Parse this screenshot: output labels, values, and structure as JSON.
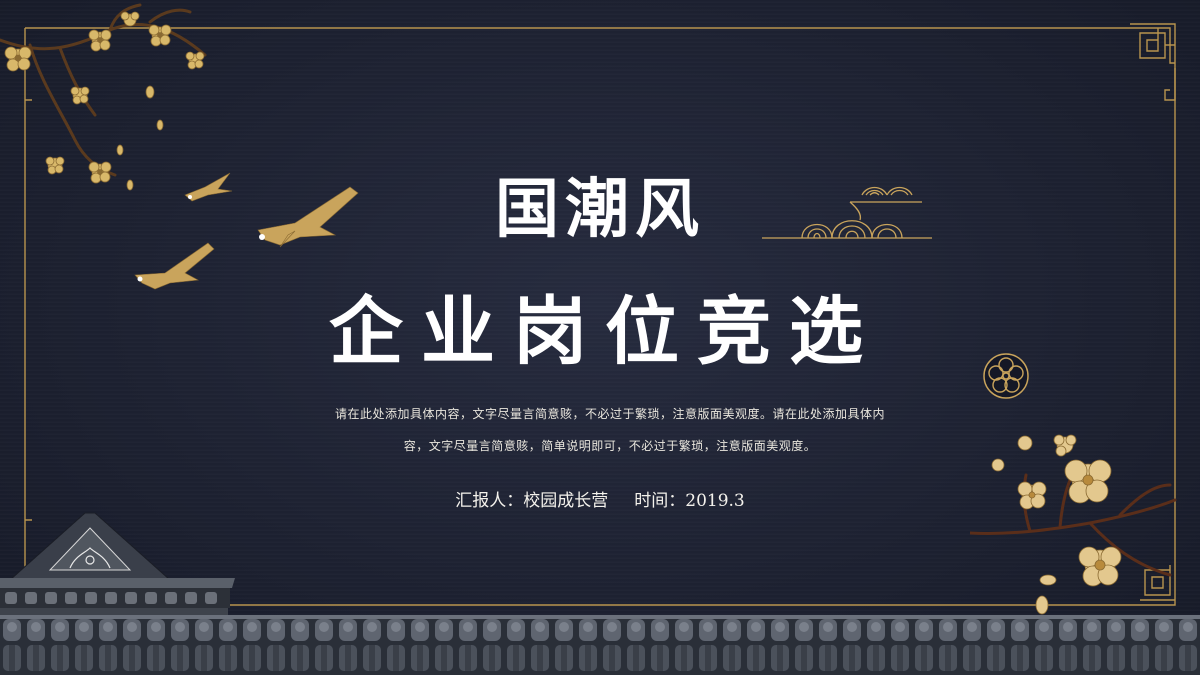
{
  "slide": {
    "title_line1": "国潮风",
    "title_line2": "企业岗位竞选",
    "description_line1": "请在此处添加具体内容，文字尽量言简意赅，不必过于繁琐，注意版面美观度。请在此处添加具体内",
    "description_line2": "容，文字尽量言简意赅，简单说明即可，不必过于繁琐，注意版面美观度。",
    "reporter_label": "汇报人：",
    "reporter_name": "校园成长营",
    "time_label": "时间：",
    "time_value": "2019.3"
  },
  "colors": {
    "background": "#1d2131",
    "gold": "#c9a45c",
    "title": "#ffffff",
    "text": "#e9e6dd"
  },
  "icons": {
    "frame": "gold-fretwork-frame",
    "plum_top_left": "plum-blossom-branch-icon",
    "cranes": "flying-cranes-icon",
    "cloud": "auspicious-cloud-icon",
    "flower_badge": "plum-flower-badge-icon",
    "plum_bottom_right": "plum-blossom-branch-icon",
    "pavilion": "chinese-pavilion-roof-icon",
    "tiles": "roof-tiles-border-icon"
  }
}
